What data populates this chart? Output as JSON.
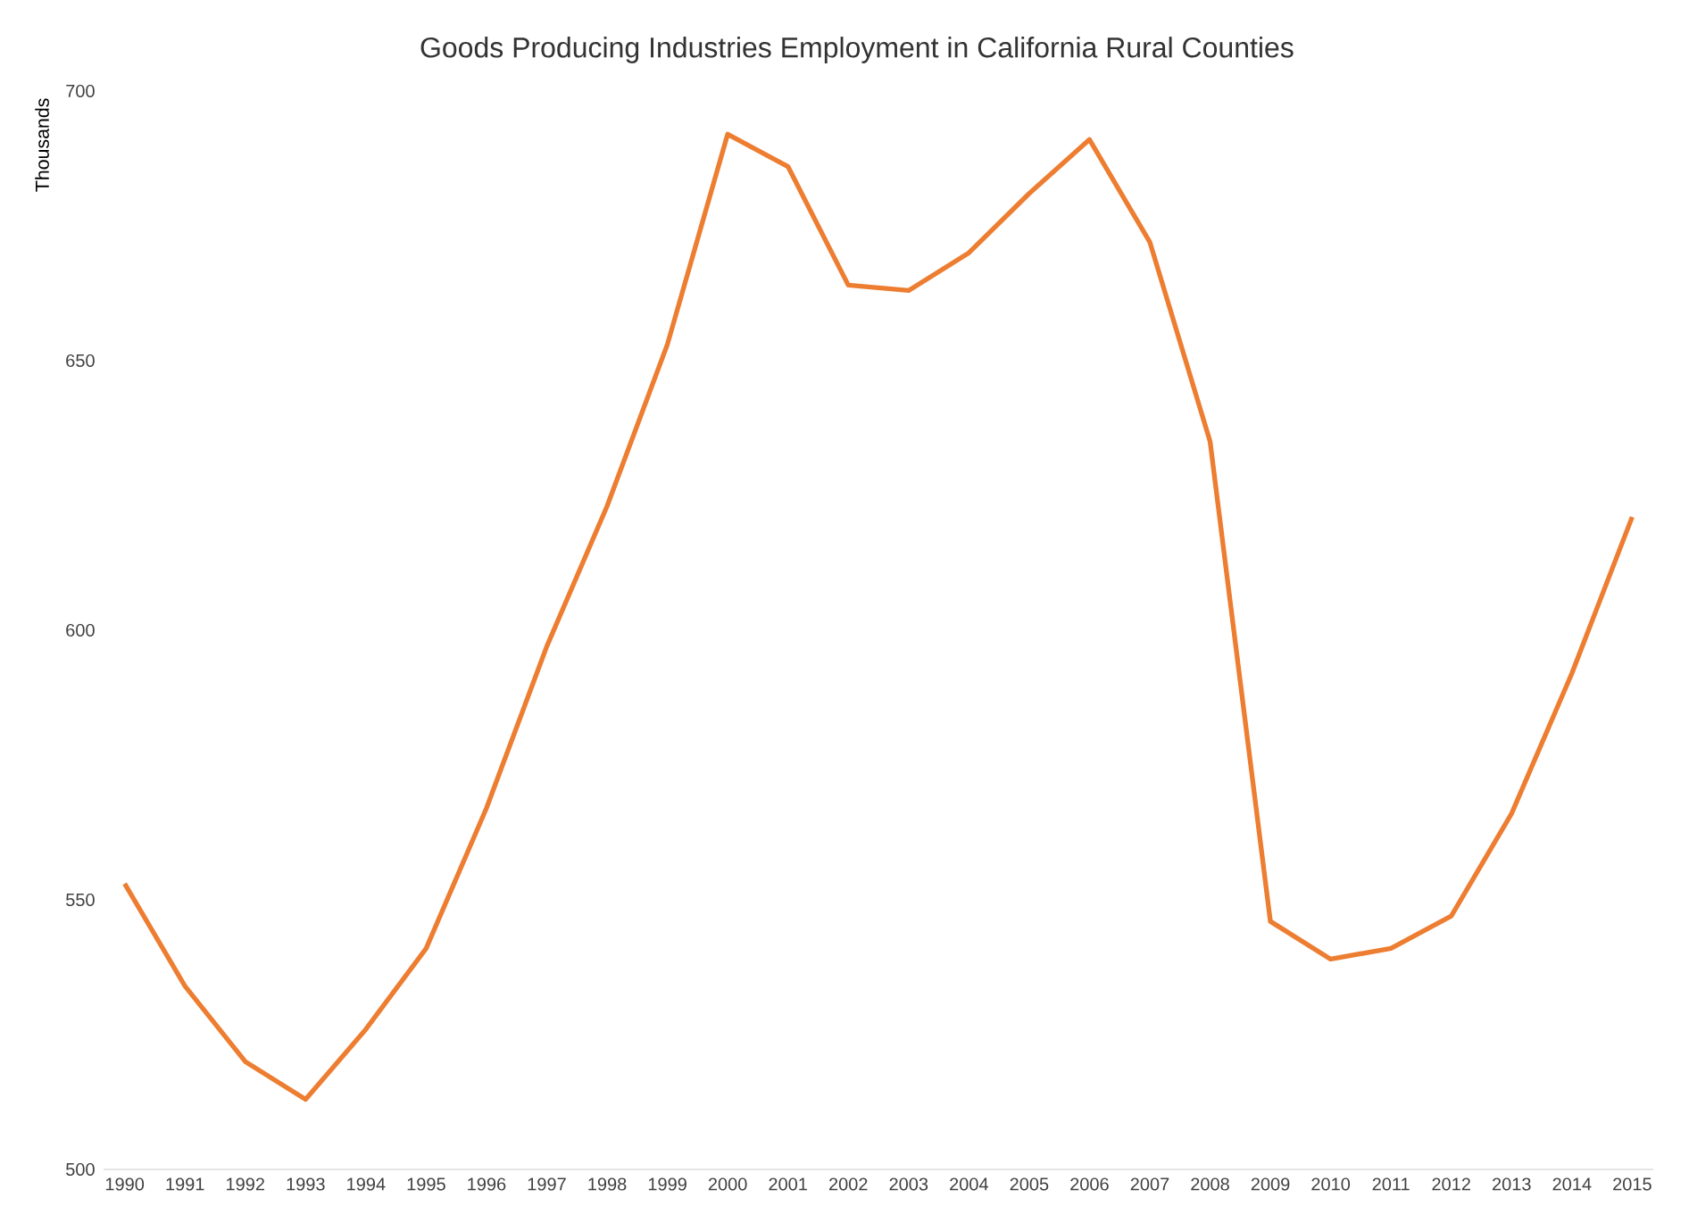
{
  "chart_data": {
    "type": "line",
    "title": "Goods Producing Industries Employment in California Rural Counties",
    "ylabel": "Thousands",
    "categories": [
      "1990",
      "1991",
      "1992",
      "1993",
      "1994",
      "1995",
      "1996",
      "1997",
      "1998",
      "1999",
      "2000",
      "2001",
      "2002",
      "2003",
      "2004",
      "2005",
      "2006",
      "2007",
      "2008",
      "2009",
      "2010",
      "2011",
      "2012",
      "2013",
      "2014",
      "2015"
    ],
    "series": [
      {
        "color": "#ed7d31",
        "values": [
          553,
          534,
          520,
          513,
          526,
          541,
          567,
          597,
          623,
          653,
          692,
          686,
          664,
          663,
          670,
          681,
          691,
          672,
          635,
          546,
          539,
          541,
          547,
          566,
          592,
          621
        ]
      }
    ],
    "ylim": [
      500,
      700
    ],
    "yticks": [
      500,
      550,
      600,
      650,
      700
    ],
    "grid": false,
    "marker": "none",
    "line_style": "solid"
  }
}
